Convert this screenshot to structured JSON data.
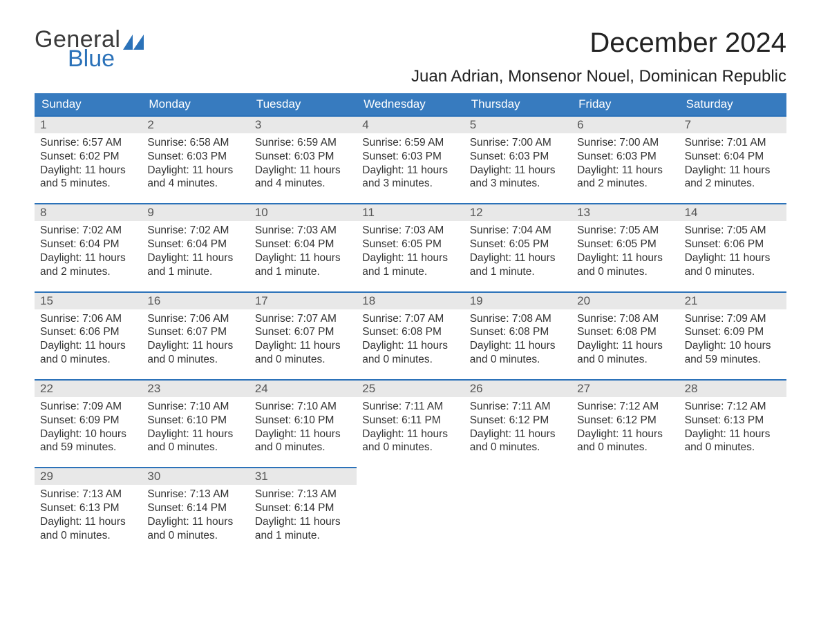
{
  "brand": {
    "word1": "General",
    "word2": "Blue"
  },
  "title": {
    "month": "December 2024",
    "location": "Juan Adrian, Monsenor Nouel, Dominican Republic"
  },
  "colors": {
    "brand_blue": "#2b72b9",
    "header_row_bg": "#377bbf",
    "header_row_text": "#ffffff",
    "daynum_bg": "#e8e8e8",
    "week_divider": "#2b72b9",
    "body_text": "#333333",
    "background": "#ffffff"
  },
  "typography": {
    "title_fontsize_pt": 30,
    "location_fontsize_pt": 18,
    "dow_header_fontsize_pt": 13,
    "daynum_fontsize_pt": 13,
    "body_fontsize_pt": 12,
    "font_family": "Arial"
  },
  "calendar": {
    "type": "table",
    "columns": [
      "Sunday",
      "Monday",
      "Tuesday",
      "Wednesday",
      "Thursday",
      "Friday",
      "Saturday"
    ],
    "weeks": [
      [
        {
          "n": "1",
          "sunrise": "Sunrise: 6:57 AM",
          "sunset": "Sunset: 6:02 PM",
          "dl1": "Daylight: 11 hours",
          "dl2": "and 5 minutes."
        },
        {
          "n": "2",
          "sunrise": "Sunrise: 6:58 AM",
          "sunset": "Sunset: 6:03 PM",
          "dl1": "Daylight: 11 hours",
          "dl2": "and 4 minutes."
        },
        {
          "n": "3",
          "sunrise": "Sunrise: 6:59 AM",
          "sunset": "Sunset: 6:03 PM",
          "dl1": "Daylight: 11 hours",
          "dl2": "and 4 minutes."
        },
        {
          "n": "4",
          "sunrise": "Sunrise: 6:59 AM",
          "sunset": "Sunset: 6:03 PM",
          "dl1": "Daylight: 11 hours",
          "dl2": "and 3 minutes."
        },
        {
          "n": "5",
          "sunrise": "Sunrise: 7:00 AM",
          "sunset": "Sunset: 6:03 PM",
          "dl1": "Daylight: 11 hours",
          "dl2": "and 3 minutes."
        },
        {
          "n": "6",
          "sunrise": "Sunrise: 7:00 AM",
          "sunset": "Sunset: 6:03 PM",
          "dl1": "Daylight: 11 hours",
          "dl2": "and 2 minutes."
        },
        {
          "n": "7",
          "sunrise": "Sunrise: 7:01 AM",
          "sunset": "Sunset: 6:04 PM",
          "dl1": "Daylight: 11 hours",
          "dl2": "and 2 minutes."
        }
      ],
      [
        {
          "n": "8",
          "sunrise": "Sunrise: 7:02 AM",
          "sunset": "Sunset: 6:04 PM",
          "dl1": "Daylight: 11 hours",
          "dl2": "and 2 minutes."
        },
        {
          "n": "9",
          "sunrise": "Sunrise: 7:02 AM",
          "sunset": "Sunset: 6:04 PM",
          "dl1": "Daylight: 11 hours",
          "dl2": "and 1 minute."
        },
        {
          "n": "10",
          "sunrise": "Sunrise: 7:03 AM",
          "sunset": "Sunset: 6:04 PM",
          "dl1": "Daylight: 11 hours",
          "dl2": "and 1 minute."
        },
        {
          "n": "11",
          "sunrise": "Sunrise: 7:03 AM",
          "sunset": "Sunset: 6:05 PM",
          "dl1": "Daylight: 11 hours",
          "dl2": "and 1 minute."
        },
        {
          "n": "12",
          "sunrise": "Sunrise: 7:04 AM",
          "sunset": "Sunset: 6:05 PM",
          "dl1": "Daylight: 11 hours",
          "dl2": "and 1 minute."
        },
        {
          "n": "13",
          "sunrise": "Sunrise: 7:05 AM",
          "sunset": "Sunset: 6:05 PM",
          "dl1": "Daylight: 11 hours",
          "dl2": "and 0 minutes."
        },
        {
          "n": "14",
          "sunrise": "Sunrise: 7:05 AM",
          "sunset": "Sunset: 6:06 PM",
          "dl1": "Daylight: 11 hours",
          "dl2": "and 0 minutes."
        }
      ],
      [
        {
          "n": "15",
          "sunrise": "Sunrise: 7:06 AM",
          "sunset": "Sunset: 6:06 PM",
          "dl1": "Daylight: 11 hours",
          "dl2": "and 0 minutes."
        },
        {
          "n": "16",
          "sunrise": "Sunrise: 7:06 AM",
          "sunset": "Sunset: 6:07 PM",
          "dl1": "Daylight: 11 hours",
          "dl2": "and 0 minutes."
        },
        {
          "n": "17",
          "sunrise": "Sunrise: 7:07 AM",
          "sunset": "Sunset: 6:07 PM",
          "dl1": "Daylight: 11 hours",
          "dl2": "and 0 minutes."
        },
        {
          "n": "18",
          "sunrise": "Sunrise: 7:07 AM",
          "sunset": "Sunset: 6:08 PM",
          "dl1": "Daylight: 11 hours",
          "dl2": "and 0 minutes."
        },
        {
          "n": "19",
          "sunrise": "Sunrise: 7:08 AM",
          "sunset": "Sunset: 6:08 PM",
          "dl1": "Daylight: 11 hours",
          "dl2": "and 0 minutes."
        },
        {
          "n": "20",
          "sunrise": "Sunrise: 7:08 AM",
          "sunset": "Sunset: 6:08 PM",
          "dl1": "Daylight: 11 hours",
          "dl2": "and 0 minutes."
        },
        {
          "n": "21",
          "sunrise": "Sunrise: 7:09 AM",
          "sunset": "Sunset: 6:09 PM",
          "dl1": "Daylight: 10 hours",
          "dl2": "and 59 minutes."
        }
      ],
      [
        {
          "n": "22",
          "sunrise": "Sunrise: 7:09 AM",
          "sunset": "Sunset: 6:09 PM",
          "dl1": "Daylight: 10 hours",
          "dl2": "and 59 minutes."
        },
        {
          "n": "23",
          "sunrise": "Sunrise: 7:10 AM",
          "sunset": "Sunset: 6:10 PM",
          "dl1": "Daylight: 11 hours",
          "dl2": "and 0 minutes."
        },
        {
          "n": "24",
          "sunrise": "Sunrise: 7:10 AM",
          "sunset": "Sunset: 6:10 PM",
          "dl1": "Daylight: 11 hours",
          "dl2": "and 0 minutes."
        },
        {
          "n": "25",
          "sunrise": "Sunrise: 7:11 AM",
          "sunset": "Sunset: 6:11 PM",
          "dl1": "Daylight: 11 hours",
          "dl2": "and 0 minutes."
        },
        {
          "n": "26",
          "sunrise": "Sunrise: 7:11 AM",
          "sunset": "Sunset: 6:12 PM",
          "dl1": "Daylight: 11 hours",
          "dl2": "and 0 minutes."
        },
        {
          "n": "27",
          "sunrise": "Sunrise: 7:12 AM",
          "sunset": "Sunset: 6:12 PM",
          "dl1": "Daylight: 11 hours",
          "dl2": "and 0 minutes."
        },
        {
          "n": "28",
          "sunrise": "Sunrise: 7:12 AM",
          "sunset": "Sunset: 6:13 PM",
          "dl1": "Daylight: 11 hours",
          "dl2": "and 0 minutes."
        }
      ],
      [
        {
          "n": "29",
          "sunrise": "Sunrise: 7:13 AM",
          "sunset": "Sunset: 6:13 PM",
          "dl1": "Daylight: 11 hours",
          "dl2": "and 0 minutes."
        },
        {
          "n": "30",
          "sunrise": "Sunrise: 7:13 AM",
          "sunset": "Sunset: 6:14 PM",
          "dl1": "Daylight: 11 hours",
          "dl2": "and 0 minutes."
        },
        {
          "n": "31",
          "sunrise": "Sunrise: 7:13 AM",
          "sunset": "Sunset: 6:14 PM",
          "dl1": "Daylight: 11 hours",
          "dl2": "and 1 minute."
        },
        null,
        null,
        null,
        null
      ]
    ]
  }
}
